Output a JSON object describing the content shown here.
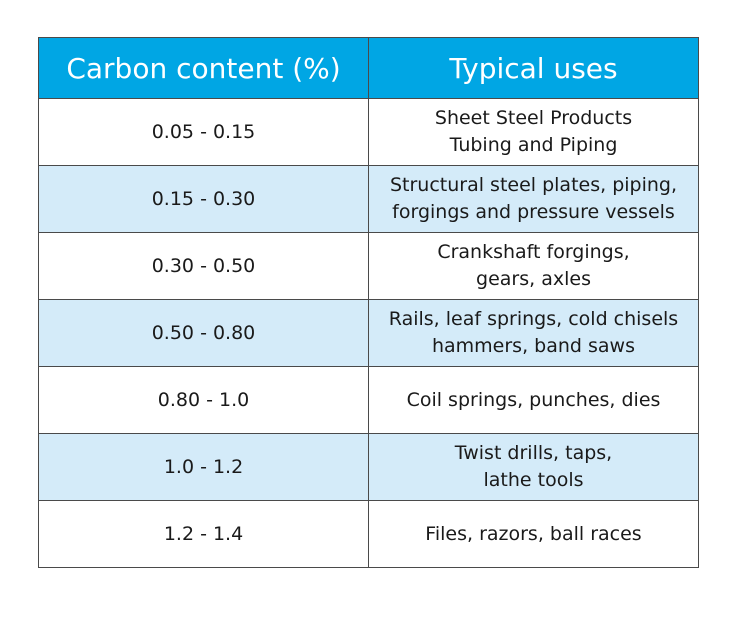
{
  "table": {
    "headers": [
      "Carbon content (%)",
      "Typical uses"
    ],
    "rows": [
      {
        "carbon": "0.05 - 0.15",
        "uses": [
          "Sheet Steel Products",
          "Tubing and Piping"
        ]
      },
      {
        "carbon": "0.15 - 0.30",
        "uses": [
          "Structural steel plates, piping,",
          "forgings and pressure vessels"
        ]
      },
      {
        "carbon": "0.30 - 0.50",
        "uses": [
          "Crankshaft forgings,",
          "gears, axles"
        ]
      },
      {
        "carbon": "0.50 - 0.80",
        "uses": [
          "Rails, leaf springs, cold chisels",
          "hammers, band saws"
        ]
      },
      {
        "carbon": "0.80 - 1.0",
        "uses": [
          "Coil springs, punches, dies"
        ]
      },
      {
        "carbon": "1.0 - 1.2",
        "uses": [
          "Twist drills, taps,",
          "lathe tools"
        ]
      },
      {
        "carbon": "1.2 - 1.4",
        "uses": [
          "Files, razors, ball races"
        ]
      }
    ]
  },
  "colors": {
    "header_bg": "#00a6e4",
    "header_text": "#ffffff",
    "stripe_bg": "#d4ebf9",
    "border": "#4a4a4a"
  }
}
